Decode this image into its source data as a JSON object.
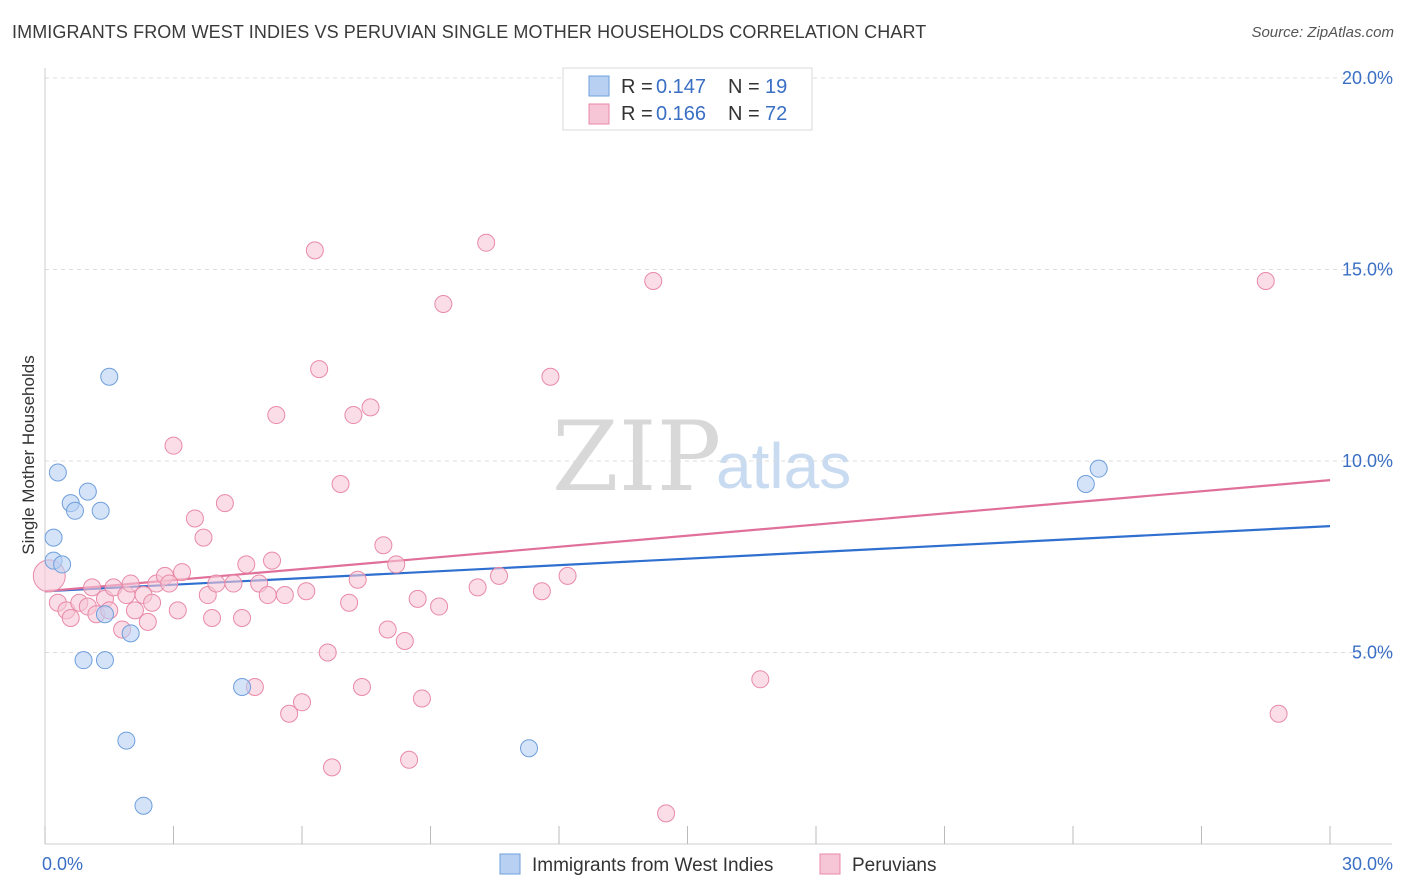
{
  "title": "IMMIGRANTS FROM WEST INDIES VS PERUVIAN SINGLE MOTHER HOUSEHOLDS CORRELATION CHART",
  "source": "Source: ZipAtlas.com",
  "watermark": {
    "zip": "ZIP",
    "atlas": "atlas"
  },
  "legend_top": [
    {
      "r_label": "R = ",
      "r_value": "0.147",
      "n_label": "N = ",
      "n_value": "19"
    },
    {
      "r_label": "R = ",
      "r_value": "0.166",
      "n_label": "N = ",
      "n_value": "72"
    }
  ],
  "legend_bottom": [
    "Immigrants from West Indies",
    "Peruvians"
  ],
  "colors": {
    "blue_fill": "#b8d1f3",
    "blue_stroke": "#6f9fdc",
    "blue_line": "#2f6fcf",
    "pink_fill": "#f7c6d6",
    "pink_stroke": "#e98aa8",
    "pink_line": "#e0709a",
    "tick_label": "#3a6fc4",
    "grid": "#dcdcdc"
  },
  "chart_data": {
    "type": "scatter",
    "title": "IMMIGRANTS FROM WEST INDIES VS PERUVIAN SINGLE MOTHER HOUSEHOLDS CORRELATION CHART",
    "xlabel": "",
    "ylabel": "Single Mother Households",
    "xlim": [
      0,
      30
    ],
    "ylim": [
      0,
      20
    ],
    "x_tick_labels": [
      "0.0%",
      "30.0%"
    ],
    "y_ticks": [
      5,
      10,
      15,
      20
    ],
    "y_tick_labels": [
      "5.0%",
      "10.0%",
      "15.0%",
      "20.0%"
    ],
    "grid": true,
    "legend_position": "top-center",
    "series": [
      {
        "name": "Immigrants from West Indies",
        "r": 0.147,
        "n": 19,
        "trend": [
          [
            0,
            6.6
          ],
          [
            30,
            8.3
          ]
        ],
        "points": [
          [
            0.2,
            7.4
          ],
          [
            0.4,
            7.3
          ],
          [
            0.2,
            8.0
          ],
          [
            0.3,
            9.7
          ],
          [
            0.6,
            8.9
          ],
          [
            0.7,
            8.7
          ],
          [
            1.0,
            9.2
          ],
          [
            1.3,
            8.7
          ],
          [
            1.5,
            12.2
          ],
          [
            1.4,
            6.0
          ],
          [
            0.9,
            4.8
          ],
          [
            1.4,
            4.8
          ],
          [
            2.0,
            5.5
          ],
          [
            1.9,
            2.7
          ],
          [
            2.3,
            1.0
          ],
          [
            4.6,
            4.1
          ],
          [
            11.3,
            2.5
          ],
          [
            24.3,
            9.4
          ],
          [
            24.6,
            9.8
          ]
        ]
      },
      {
        "name": "Peruvians",
        "r": 0.166,
        "n": 72,
        "trend": [
          [
            0,
            6.6
          ],
          [
            30,
            9.5
          ]
        ],
        "points": [
          [
            0.1,
            7.0
          ],
          [
            0.3,
            6.3
          ],
          [
            0.5,
            6.1
          ],
          [
            0.6,
            5.9
          ],
          [
            0.8,
            6.3
          ],
          [
            1.0,
            6.2
          ],
          [
            1.1,
            6.7
          ],
          [
            1.2,
            6.0
          ],
          [
            1.4,
            6.4
          ],
          [
            1.5,
            6.1
          ],
          [
            1.6,
            6.7
          ],
          [
            1.8,
            5.6
          ],
          [
            1.9,
            6.5
          ],
          [
            2.0,
            6.8
          ],
          [
            2.1,
            6.1
          ],
          [
            2.3,
            6.5
          ],
          [
            2.4,
            5.8
          ],
          [
            2.5,
            6.3
          ],
          [
            2.6,
            6.8
          ],
          [
            2.8,
            7.0
          ],
          [
            2.9,
            6.8
          ],
          [
            3.1,
            6.1
          ],
          [
            3.2,
            7.1
          ],
          [
            3.5,
            8.5
          ],
          [
            3.7,
            8.0
          ],
          [
            3.8,
            6.5
          ],
          [
            3.9,
            5.9
          ],
          [
            4.0,
            6.8
          ],
          [
            4.2,
            8.9
          ],
          [
            4.4,
            6.8
          ],
          [
            4.6,
            5.9
          ],
          [
            4.7,
            7.3
          ],
          [
            4.9,
            4.1
          ],
          [
            5.0,
            6.8
          ],
          [
            5.2,
            6.5
          ],
          [
            5.3,
            7.4
          ],
          [
            5.4,
            11.2
          ],
          [
            5.6,
            6.5
          ],
          [
            5.7,
            3.4
          ],
          [
            6.1,
            6.6
          ],
          [
            6.3,
            15.5
          ],
          [
            6.4,
            12.4
          ],
          [
            6.6,
            5.0
          ],
          [
            6.7,
            2.0
          ],
          [
            6.9,
            9.4
          ],
          [
            7.1,
            6.3
          ],
          [
            7.2,
            11.2
          ],
          [
            7.3,
            6.9
          ],
          [
            7.4,
            4.1
          ],
          [
            7.6,
            11.4
          ],
          [
            7.9,
            7.8
          ],
          [
            8.0,
            5.6
          ],
          [
            8.2,
            7.3
          ],
          [
            8.4,
            5.3
          ],
          [
            8.5,
            2.2
          ],
          [
            8.7,
            6.4
          ],
          [
            8.8,
            3.8
          ],
          [
            3.0,
            10.4
          ],
          [
            6.0,
            3.7
          ],
          [
            9.3,
            14.1
          ],
          [
            9.2,
            6.2
          ],
          [
            10.1,
            6.7
          ],
          [
            10.3,
            15.7
          ],
          [
            10.6,
            7.0
          ],
          [
            11.6,
            6.6
          ],
          [
            11.8,
            12.2
          ],
          [
            12.2,
            7.0
          ],
          [
            14.2,
            14.7
          ],
          [
            14.5,
            0.8
          ],
          [
            16.7,
            4.3
          ],
          [
            28.5,
            14.7
          ],
          [
            28.8,
            3.4
          ]
        ]
      }
    ]
  }
}
